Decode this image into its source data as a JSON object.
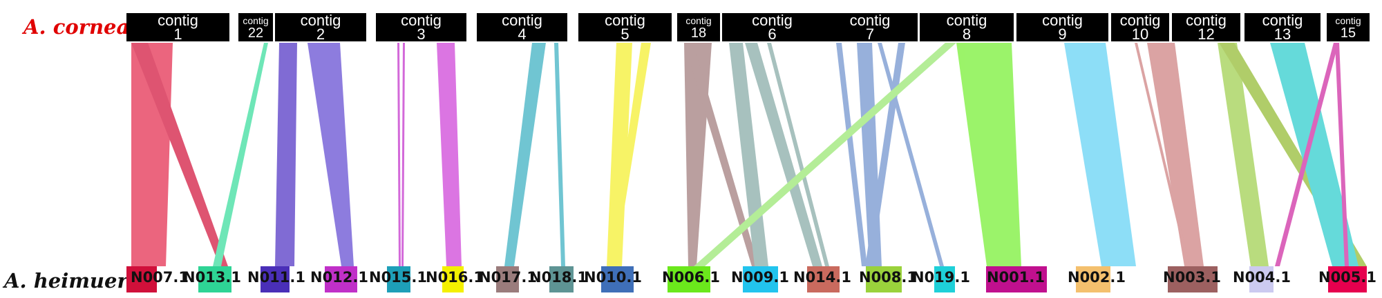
{
  "diagram": {
    "top_label": "A. cornea",
    "bottom_label": "A. heimuer",
    "top_label_color": "#e00000",
    "contig_prefix": "contig",
    "top_contigs": [
      "1",
      "22",
      "2",
      "3",
      "4",
      "5",
      "18",
      "6",
      "7",
      "8",
      "9",
      "10",
      "12",
      "13",
      "15"
    ],
    "bottom_scaffolds": [
      {
        "label": "N007.1",
        "color": "#d0103a"
      },
      {
        "label": "N013.1",
        "color": "#2ed495"
      },
      {
        "label": "N011.1",
        "color": "#4a2fb8"
      },
      {
        "label": "N012.1",
        "color": "#c030c8"
      },
      {
        "label": "N015.1",
        "color": "#1e9fb8"
      },
      {
        "label": "N016.1",
        "color": "#f4f000"
      },
      {
        "label": "N017.1",
        "color": "#9a7c7c"
      },
      {
        "label": "N018.1",
        "color": "#5e9494"
      },
      {
        "label": "N010.1",
        "color": "#3f6fb8"
      },
      {
        "label": "N006.1",
        "color": "#6be81c"
      },
      {
        "label": "N009.1",
        "color": "#22c4ee"
      },
      {
        "label": "N014.1",
        "color": "#c96a5e"
      },
      {
        "label": "N008.1",
        "color": "#9ad23c"
      },
      {
        "label": "N019.1",
        "color": "#1ed0d8"
      },
      {
        "label": "N001.1",
        "color": "#c0108e"
      },
      {
        "label": "N002.1",
        "color": "#f4c06e"
      },
      {
        "label": "N003.1",
        "color": "#9c6060"
      },
      {
        "label": "N004.1",
        "color": "#cccaf0"
      },
      {
        "label": "N005.1",
        "color": "#e6004e"
      }
    ]
  }
}
